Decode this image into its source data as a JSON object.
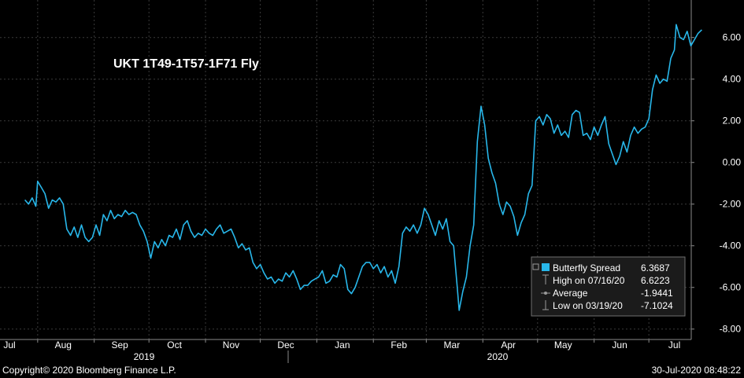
{
  "chart_data": {
    "type": "line",
    "title": "UKT 1T49-1T57-1F71 Fly",
    "y_ticks": [
      "6.00",
      "4.00",
      "2.00",
      "0.00",
      "-2.00",
      "-4.00",
      "-6.00",
      "-8.00"
    ],
    "ylim": [
      -8.5,
      7.8
    ],
    "x_ticks": [
      "Jul",
      "Aug",
      "Sep",
      "Oct",
      "Nov",
      "Dec",
      "Jan",
      "Feb",
      "Mar",
      "Apr",
      "May",
      "Jun",
      "Jul"
    ],
    "years": [
      "2019",
      "2020"
    ],
    "grid": true,
    "series": [
      {
        "name": "Butterfly Spread",
        "color": "#28b7ea",
        "points": [
          [
            "2019-07-25",
            -1.8
          ],
          [
            "2019-07-27",
            -2.0
          ],
          [
            "2019-07-29",
            -1.7
          ],
          [
            "2019-07-31",
            -2.1
          ],
          [
            "2019-08-01",
            -0.9
          ],
          [
            "2019-08-03",
            -1.2
          ],
          [
            "2019-08-05",
            -1.5
          ],
          [
            "2019-08-07",
            -2.2
          ],
          [
            "2019-08-09",
            -1.8
          ],
          [
            "2019-08-11",
            -1.9
          ],
          [
            "2019-08-13",
            -1.7
          ],
          [
            "2019-08-15",
            -2.0
          ],
          [
            "2019-08-17",
            -3.2
          ],
          [
            "2019-08-19",
            -3.5
          ],
          [
            "2019-08-21",
            -3.1
          ],
          [
            "2019-08-23",
            -3.6
          ],
          [
            "2019-08-25",
            -3.0
          ],
          [
            "2019-08-27",
            -3.6
          ],
          [
            "2019-08-29",
            -3.8
          ],
          [
            "2019-08-31",
            -3.6
          ],
          [
            "2019-09-02",
            -3.0
          ],
          [
            "2019-09-04",
            -3.5
          ],
          [
            "2019-09-06",
            -2.5
          ],
          [
            "2019-09-08",
            -2.8
          ],
          [
            "2019-09-10",
            -2.3
          ],
          [
            "2019-09-12",
            -2.7
          ],
          [
            "2019-09-14",
            -2.5
          ],
          [
            "2019-09-16",
            -2.6
          ],
          [
            "2019-09-18",
            -2.3
          ],
          [
            "2019-09-20",
            -2.5
          ],
          [
            "2019-09-22",
            -2.4
          ],
          [
            "2019-09-24",
            -2.5
          ],
          [
            "2019-09-26",
            -3.0
          ],
          [
            "2019-09-28",
            -3.3
          ],
          [
            "2019-09-30",
            -3.8
          ],
          [
            "2019-10-02",
            -4.6
          ],
          [
            "2019-10-04",
            -3.8
          ],
          [
            "2019-10-06",
            -4.1
          ],
          [
            "2019-10-08",
            -3.7
          ],
          [
            "2019-10-10",
            -4.0
          ],
          [
            "2019-10-12",
            -3.5
          ],
          [
            "2019-10-14",
            -3.6
          ],
          [
            "2019-10-16",
            -3.2
          ],
          [
            "2019-10-18",
            -3.7
          ],
          [
            "2019-10-20",
            -3.0
          ],
          [
            "2019-10-22",
            -2.8
          ],
          [
            "2019-10-24",
            -3.3
          ],
          [
            "2019-10-26",
            -3.6
          ],
          [
            "2019-10-28",
            -3.4
          ],
          [
            "2019-10-30",
            -3.5
          ],
          [
            "2019-11-01",
            -3.2
          ],
          [
            "2019-11-03",
            -3.4
          ],
          [
            "2019-11-05",
            -3.5
          ],
          [
            "2019-11-07",
            -3.2
          ],
          [
            "2019-11-09",
            -3.0
          ],
          [
            "2019-11-11",
            -3.4
          ],
          [
            "2019-11-13",
            -3.3
          ],
          [
            "2019-11-15",
            -3.2
          ],
          [
            "2019-11-17",
            -3.6
          ],
          [
            "2019-11-19",
            -4.1
          ],
          [
            "2019-11-21",
            -3.9
          ],
          [
            "2019-11-23",
            -4.2
          ],
          [
            "2019-11-25",
            -4.1
          ],
          [
            "2019-11-27",
            -4.8
          ],
          [
            "2019-11-29",
            -5.1
          ],
          [
            "2019-12-01",
            -4.9
          ],
          [
            "2019-12-03",
            -5.3
          ],
          [
            "2019-12-05",
            -5.6
          ],
          [
            "2019-12-07",
            -5.5
          ],
          [
            "2019-12-09",
            -5.8
          ],
          [
            "2019-12-11",
            -5.6
          ],
          [
            "2019-12-13",
            -5.7
          ],
          [
            "2019-12-15",
            -5.3
          ],
          [
            "2019-12-17",
            -5.5
          ],
          [
            "2019-12-19",
            -5.2
          ],
          [
            "2019-12-21",
            -5.6
          ],
          [
            "2019-12-23",
            -6.1
          ],
          [
            "2019-12-25",
            -5.9
          ],
          [
            "2019-12-27",
            -5.9
          ],
          [
            "2019-12-29",
            -5.7
          ],
          [
            "2019-12-31",
            -5.6
          ],
          [
            "2020-01-02",
            -5.5
          ],
          [
            "2020-01-04",
            -5.2
          ],
          [
            "2020-01-06",
            -5.8
          ],
          [
            "2020-01-08",
            -5.7
          ],
          [
            "2020-01-10",
            -5.4
          ],
          [
            "2020-01-12",
            -5.5
          ],
          [
            "2020-01-14",
            -4.9
          ],
          [
            "2020-01-16",
            -5.1
          ],
          [
            "2020-01-18",
            -6.1
          ],
          [
            "2020-01-20",
            -6.3
          ],
          [
            "2020-01-22",
            -6.0
          ],
          [
            "2020-01-24",
            -5.5
          ],
          [
            "2020-01-26",
            -5.0
          ],
          [
            "2020-01-28",
            -4.8
          ],
          [
            "2020-01-30",
            -4.8
          ],
          [
            "2020-02-01",
            -5.1
          ],
          [
            "2020-02-03",
            -4.9
          ],
          [
            "2020-02-05",
            -5.3
          ],
          [
            "2020-02-07",
            -5.0
          ],
          [
            "2020-02-09",
            -5.5
          ],
          [
            "2020-02-11",
            -5.2
          ],
          [
            "2020-02-13",
            -5.8
          ],
          [
            "2020-02-15",
            -5.0
          ],
          [
            "2020-02-17",
            -3.4
          ],
          [
            "2020-02-19",
            -3.1
          ],
          [
            "2020-02-21",
            -3.3
          ],
          [
            "2020-02-23",
            -3.0
          ],
          [
            "2020-02-25",
            -3.4
          ],
          [
            "2020-02-27",
            -3.0
          ],
          [
            "2020-02-29",
            -2.2
          ],
          [
            "2020-03-02",
            -2.5
          ],
          [
            "2020-03-04",
            -3.0
          ],
          [
            "2020-03-06",
            -3.5
          ],
          [
            "2020-03-08",
            -2.8
          ],
          [
            "2020-03-10",
            -3.2
          ],
          [
            "2020-03-12",
            -2.7
          ],
          [
            "2020-03-14",
            -3.8
          ],
          [
            "2020-03-16",
            -4.0
          ],
          [
            "2020-03-18",
            -6.0
          ],
          [
            "2020-03-19",
            -7.1
          ],
          [
            "2020-03-21",
            -6.2
          ],
          [
            "2020-03-23",
            -5.5
          ],
          [
            "2020-03-25",
            -4.0
          ],
          [
            "2020-03-27",
            -3.0
          ],
          [
            "2020-03-29",
            1.0
          ],
          [
            "2020-03-31",
            2.7
          ],
          [
            "2020-04-02",
            1.8
          ],
          [
            "2020-04-04",
            0.2
          ],
          [
            "2020-04-06",
            -0.5
          ],
          [
            "2020-04-08",
            -1.0
          ],
          [
            "2020-04-10",
            -2.0
          ],
          [
            "2020-04-12",
            -2.5
          ],
          [
            "2020-04-14",
            -1.9
          ],
          [
            "2020-04-16",
            -2.1
          ],
          [
            "2020-04-18",
            -2.6
          ],
          [
            "2020-04-20",
            -3.5
          ],
          [
            "2020-04-22",
            -2.9
          ],
          [
            "2020-04-24",
            -2.5
          ],
          [
            "2020-04-26",
            -1.5
          ],
          [
            "2020-04-28",
            -1.1
          ],
          [
            "2020-04-30",
            2.0
          ],
          [
            "2020-05-02",
            2.2
          ],
          [
            "2020-05-04",
            1.8
          ],
          [
            "2020-05-06",
            2.3
          ],
          [
            "2020-05-08",
            2.1
          ],
          [
            "2020-05-10",
            1.4
          ],
          [
            "2020-05-12",
            1.8
          ],
          [
            "2020-05-14",
            1.3
          ],
          [
            "2020-05-16",
            1.5
          ],
          [
            "2020-05-18",
            1.2
          ],
          [
            "2020-05-20",
            2.3
          ],
          [
            "2020-05-22",
            2.5
          ],
          [
            "2020-05-24",
            2.4
          ],
          [
            "2020-05-26",
            1.3
          ],
          [
            "2020-05-28",
            1.4
          ],
          [
            "2020-05-30",
            1.1
          ],
          [
            "2020-06-01",
            1.7
          ],
          [
            "2020-06-03",
            1.3
          ],
          [
            "2020-06-05",
            1.8
          ],
          [
            "2020-06-07",
            2.2
          ],
          [
            "2020-06-09",
            0.9
          ],
          [
            "2020-06-11",
            0.4
          ],
          [
            "2020-06-13",
            -0.1
          ],
          [
            "2020-06-15",
            0.3
          ],
          [
            "2020-06-17",
            1.0
          ],
          [
            "2020-06-19",
            0.5
          ],
          [
            "2020-06-21",
            1.3
          ],
          [
            "2020-06-23",
            1.7
          ],
          [
            "2020-06-25",
            1.4
          ],
          [
            "2020-06-27",
            1.6
          ],
          [
            "2020-06-29",
            1.7
          ],
          [
            "2020-07-01",
            2.1
          ],
          [
            "2020-07-03",
            3.5
          ],
          [
            "2020-07-05",
            4.2
          ],
          [
            "2020-07-07",
            3.8
          ],
          [
            "2020-07-09",
            4.0
          ],
          [
            "2020-07-11",
            3.9
          ],
          [
            "2020-07-13",
            5.0
          ],
          [
            "2020-07-15",
            5.4
          ],
          [
            "2020-07-16",
            6.62
          ],
          [
            "2020-07-18",
            6.0
          ],
          [
            "2020-07-20",
            5.9
          ],
          [
            "2020-07-22",
            6.3
          ],
          [
            "2020-07-24",
            5.6
          ],
          [
            "2020-07-26",
            5.9
          ],
          [
            "2020-07-28",
            6.2
          ],
          [
            "2020-07-30",
            6.37
          ]
        ]
      }
    ],
    "legend": {
      "placement": "bottom-right",
      "entries": [
        {
          "label": "Butterfly Spread",
          "value": "6.3687",
          "marker": "square"
        },
        {
          "label": "High on 07/16/20",
          "value": "6.6223",
          "marker": "high"
        },
        {
          "label": "Average",
          "value": "-1.9441",
          "marker": "average"
        },
        {
          "label": "Low on 03/19/20",
          "value": "-7.1024",
          "marker": "low"
        }
      ]
    }
  },
  "footer": {
    "copyright": "Copyright© 2020 Bloomberg Finance L.P.",
    "timestamp": "30-Jul-2020 08:48:22"
  }
}
